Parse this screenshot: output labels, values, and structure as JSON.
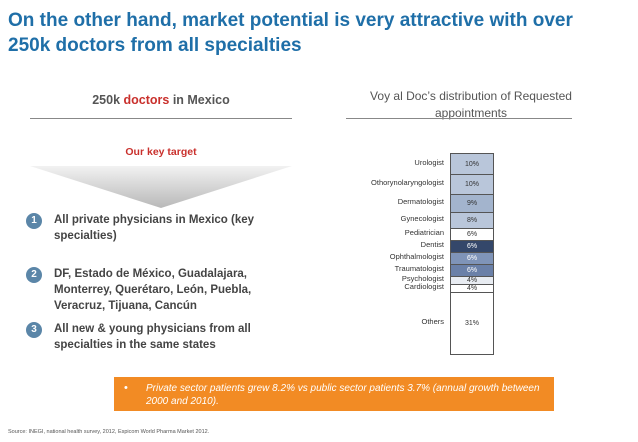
{
  "title": "On the other hand, market potential is very attractive with over 250k doctors from all specialties",
  "left": {
    "heading_prefix": "250k ",
    "heading_highlight": "doctors",
    "heading_suffix": " in Mexico",
    "key_target": "Our key target",
    "points": [
      {
        "num": "1",
        "text": "All private physicians in Mexico (key specialties)"
      },
      {
        "num": "2",
        "text": "DF, Estado de México, Guadalajara, Monterrey, Querétaro, León, Puebla, Veracruz, Tijuana, Cancún"
      },
      {
        "num": "3",
        "text": "All new & young physicians from all specialties in the same states"
      }
    ]
  },
  "right": {
    "heading": "Voy al Doc’s distribution of Requested appointments"
  },
  "chart_data": {
    "type": "bar",
    "stacked": true,
    "categories": [
      "Urologist",
      "Othorynolaryngologist",
      "Dermatologist",
      "Gynecologist",
      "Pediatrician",
      "Dentist",
      "Ophthalmologist",
      "Traumatologist",
      "Psychologist",
      "Cardiologist",
      "Others"
    ],
    "values": [
      10,
      10,
      9,
      8,
      6,
      6,
      6,
      6,
      4,
      4,
      31
    ],
    "value_labels": [
      "10%",
      "10%",
      "9%",
      "8%",
      "6%",
      "6%",
      "6%",
      "6%",
      "4%",
      "4%",
      "31%"
    ],
    "colors": [
      "#b9c6da",
      "#b9c6da",
      "#a3b4cd",
      "#b9c6da",
      "#ffffff",
      "#34476a",
      "#7f94b8",
      "#6a80a8",
      "#e8ecf2",
      "#ffffff",
      "#ffffff"
    ]
  },
  "footer": {
    "bullet": "•",
    "text": "Private sector patients grew 8.2% vs public sector patients 3.7% (annual growth between 2000 and 2010)."
  },
  "source": "Source: INEGI, national health survey, 2012, Espicom  World Pharma Market 2012."
}
